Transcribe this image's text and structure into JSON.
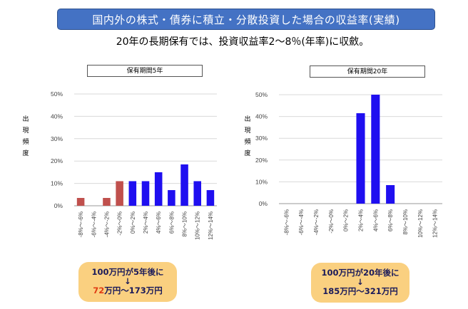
{
  "header": {
    "title": "国内外の株式・債券に積立・分散投資した場合の収益率(実績)",
    "subtitle": "20年の長期保有では、投資収益率2～8％(年率)に収斂。"
  },
  "y_axis_label_chars": [
    "出",
    "現",
    "頻",
    "度"
  ],
  "colors": {
    "positive": "#1f0ff0",
    "negative": "#c0504d",
    "grid": "#d9d9d9",
    "callout": "#fad080"
  },
  "chart_data": [
    {
      "type": "bar",
      "title": "保有期間5年",
      "ylabel": "出現頻度",
      "categories": [
        "-8%～-6%",
        "-6%～-4%",
        "-4%～-2%",
        "-2%～0%",
        "0%～2%",
        "2%～4%",
        "4%～6%",
        "6%～8%",
        "8%～10%",
        "10%～12%",
        "12%～14%"
      ],
      "values": [
        3.5,
        0,
        3.5,
        11,
        11,
        11,
        15,
        7,
        18.5,
        11,
        7
      ],
      "bar_colors": [
        "#c0504d",
        "#c0504d",
        "#c0504d",
        "#c0504d",
        "#1f0ff0",
        "#1f0ff0",
        "#1f0ff0",
        "#1f0ff0",
        "#1f0ff0",
        "#1f0ff0",
        "#1f0ff0"
      ],
      "yticks": [
        "0%",
        "10%",
        "20%",
        "30%",
        "40%",
        "50%"
      ],
      "ylim": [
        0,
        50
      ]
    },
    {
      "type": "bar",
      "title": "保有期間20年",
      "ylabel": "出現頻度",
      "categories": [
        "-8%～-6%",
        "-6%～-4%",
        "-4%～-2%",
        "-2%～0%",
        "0%～2%",
        "2%～4%",
        "4%～6%",
        "6%～8%",
        "8%～10%",
        "10%～12%",
        "12%～14%"
      ],
      "values": [
        0,
        0,
        0,
        0,
        0,
        41.5,
        50,
        8.5,
        0,
        0,
        0
      ],
      "bar_colors": [
        "#1f0ff0",
        "#1f0ff0",
        "#1f0ff0",
        "#1f0ff0",
        "#1f0ff0",
        "#1f0ff0",
        "#1f0ff0",
        "#1f0ff0",
        "#1f0ff0",
        "#1f0ff0",
        "#1f0ff0"
      ],
      "yticks": [
        "0%",
        "10%",
        "20%",
        "30%",
        "40%",
        "50%"
      ],
      "ylim": [
        0,
        50
      ]
    }
  ],
  "callouts": {
    "left": {
      "line1": "100万円が5年後に",
      "arrow": "↓",
      "min": "72",
      "rest": "万円～173万円"
    },
    "right": {
      "line1": "100万円が20年後に",
      "arrow": "↓",
      "line3": "185万円～321万円"
    }
  }
}
